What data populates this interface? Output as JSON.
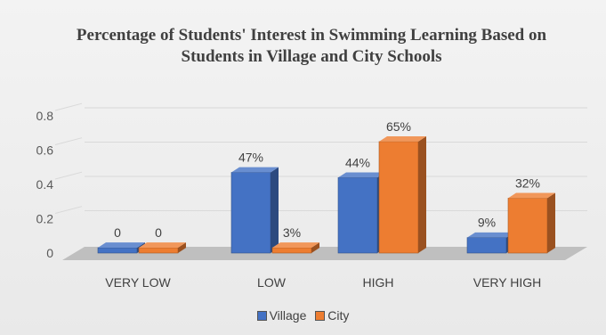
{
  "chart_data": {
    "type": "bar",
    "title": "Percentage of Students' Interest in Swimming Learning Based on Students in Village  and City Schools",
    "categories": [
      "VERY LOW",
      "LOW",
      "HIGH",
      "VERY HIGH"
    ],
    "series": [
      {
        "name": "Village",
        "values": [
          0,
          0.47,
          0.44,
          0.09
        ],
        "labels": [
          "0",
          "47%",
          "44%",
          "9%"
        ],
        "color": "#4472c4"
      },
      {
        "name": "City",
        "values": [
          0,
          0.03,
          0.65,
          0.32
        ],
        "labels": [
          "0",
          "3%",
          "65%",
          "32%"
        ],
        "color": "#ed7d31"
      }
    ],
    "yticks": [
      "0",
      "0.2",
      "0.4",
      "0.6",
      "0.8"
    ],
    "ylim": [
      0,
      0.8
    ],
    "grid": true,
    "legend": "bottom",
    "style": "3d-clustered-column"
  }
}
